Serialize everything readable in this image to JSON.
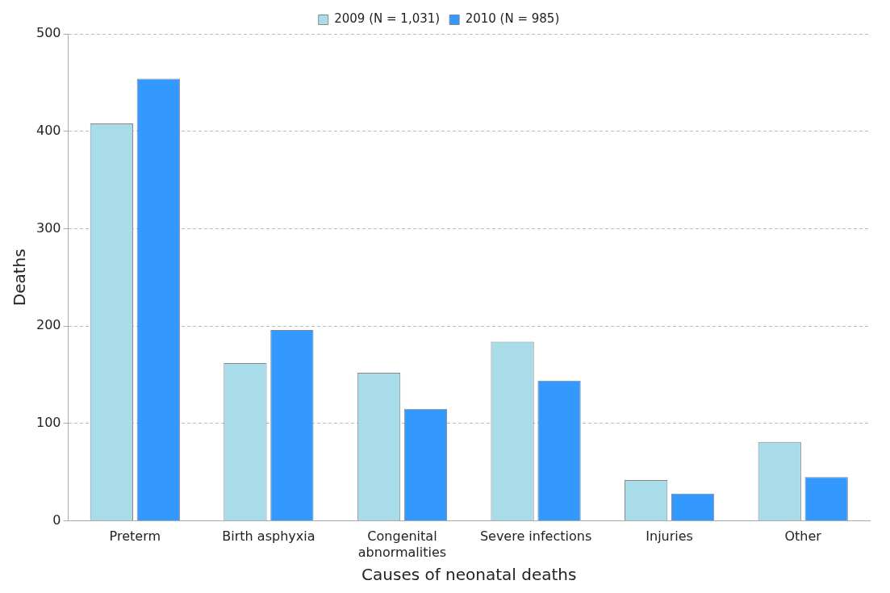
{
  "chart_data": {
    "type": "bar",
    "xlabel": "Causes of neonatal deaths",
    "ylabel": "Deaths",
    "categories": [
      "Preterm",
      "Birth asphyxia",
      "Congenital abnormalities",
      "Severe infections",
      "Injuries",
      "Other"
    ],
    "series": [
      {
        "name": "2009 (N = 1,031)",
        "color": "#a8dce8",
        "values": [
          408,
          162,
          152,
          184,
          42,
          81
        ]
      },
      {
        "name": "2010 (N = 985)",
        "color": "#3399ff",
        "values": [
          454,
          196,
          115,
          144,
          28,
          45
        ]
      }
    ],
    "ylim": [
      0,
      500
    ],
    "yticks": [
      0,
      100,
      200,
      300,
      400,
      500
    ],
    "grid": "y",
    "legend": "top"
  }
}
